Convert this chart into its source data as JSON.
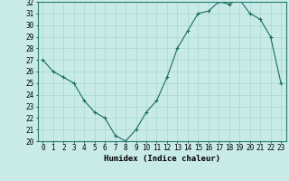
{
  "x": [
    0,
    1,
    2,
    3,
    4,
    5,
    6,
    7,
    8,
    9,
    10,
    11,
    12,
    13,
    14,
    15,
    16,
    17,
    18,
    19,
    20,
    21,
    22,
    23
  ],
  "y": [
    27.0,
    26.0,
    25.5,
    25.0,
    23.5,
    22.5,
    22.0,
    20.5,
    20.0,
    21.0,
    22.5,
    23.5,
    25.5,
    28.0,
    29.5,
    31.0,
    31.2,
    32.0,
    31.8,
    32.2,
    31.0,
    30.5,
    29.0,
    25.0
  ],
  "line_color": "#1a6b5e",
  "marker": "+",
  "bg_color": "#c8ebe8",
  "grid_color": "#a8d8d4",
  "xlabel": "Humidex (Indice chaleur)",
  "ylim": [
    20,
    32
  ],
  "xlim": [
    -0.5,
    23.5
  ],
  "yticks": [
    20,
    21,
    22,
    23,
    24,
    25,
    26,
    27,
    28,
    29,
    30,
    31,
    32
  ],
  "xticks": [
    0,
    1,
    2,
    3,
    4,
    5,
    6,
    7,
    8,
    9,
    10,
    11,
    12,
    13,
    14,
    15,
    16,
    17,
    18,
    19,
    20,
    21,
    22,
    23
  ],
  "label_fontsize": 6.5,
  "tick_fontsize": 5.5
}
